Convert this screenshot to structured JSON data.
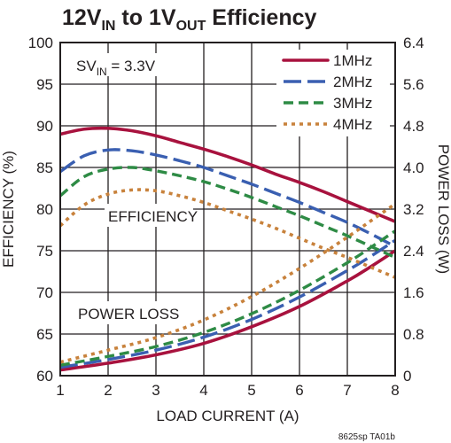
{
  "chart_data": {
    "type": "line",
    "title": {
      "parts": [
        {
          "text": "12V",
          "sub": false
        },
        {
          "text": "IN",
          "sub": true
        },
        {
          "text": " to 1V",
          "sub": false
        },
        {
          "text": "OUT",
          "sub": true
        },
        {
          "text": " Efficiency",
          "sub": false
        }
      ]
    },
    "xlabel": "LOAD CURRENT (A)",
    "ylabel_left": "EFFICIENCY (%)",
    "ylabel_right": "POWER LOSS (W)",
    "xlim": [
      1,
      8
    ],
    "ylim_left": [
      60,
      100
    ],
    "ylim_right": [
      0,
      6.4
    ],
    "x_ticks": [
      "1",
      "2",
      "3",
      "4",
      "5",
      "6",
      "7",
      "8"
    ],
    "y_left_ticks": [
      "60",
      "65",
      "70",
      "75",
      "80",
      "85",
      "90",
      "95",
      "100"
    ],
    "y_right_ticks": [
      "0",
      "0.8",
      "1.6",
      "2.4",
      "3.2",
      "4.0",
      "4.8",
      "5.6",
      "6.4"
    ],
    "grid": true,
    "annotations": {
      "svin": {
        "prefix": "SV",
        "sub": "IN",
        "suffix": " = 3.3V"
      },
      "efficiency_label": "EFFICIENCY",
      "power_loss_label": "POWER LOSS"
    },
    "legend_position": "top-right",
    "footnote": "8625sp TA01b",
    "series": [
      {
        "name": "1MHz",
        "color": "#a8123e",
        "dash": "solid",
        "efficiency": {
          "x": [
            1,
            1.5,
            2,
            2.5,
            3,
            3.5,
            4,
            4.5,
            5,
            5.5,
            6,
            6.5,
            7,
            7.5,
            8
          ],
          "y": [
            89.0,
            89.6,
            89.7,
            89.4,
            88.8,
            88.0,
            87.2,
            86.3,
            85.3,
            84.2,
            83.2,
            82.1,
            80.9,
            79.7,
            78.5
          ]
        },
        "power_loss": {
          "x": [
            1,
            2,
            3,
            4,
            5,
            6,
            7,
            7.5,
            8
          ],
          "y": [
            0.11,
            0.24,
            0.4,
            0.62,
            0.94,
            1.33,
            1.82,
            2.1,
            2.4
          ]
        }
      },
      {
        "name": "2MHz",
        "color": "#3a5fb1",
        "dash": "longdash",
        "efficiency": {
          "x": [
            1,
            1.5,
            2,
            2.5,
            3,
            3.5,
            4,
            4.5,
            5,
            5.5,
            6,
            6.5,
            7,
            7.5,
            8
          ],
          "y": [
            84.5,
            86.4,
            87.1,
            87.0,
            86.5,
            85.8,
            85.0,
            84.0,
            83.0,
            81.9,
            80.8,
            79.6,
            78.4,
            77.0,
            75.5
          ]
        },
        "power_loss": {
          "x": [
            1,
            2,
            3,
            4,
            5,
            6,
            7,
            7.5,
            8
          ],
          "y": [
            0.16,
            0.31,
            0.49,
            0.74,
            1.08,
            1.51,
            2.02,
            2.3,
            2.6
          ]
        }
      },
      {
        "name": "3MHz",
        "color": "#2e8b45",
        "dash": "dash",
        "efficiency": {
          "x": [
            1,
            1.5,
            2,
            2.5,
            3,
            3.5,
            4,
            4.5,
            5,
            5.5,
            6,
            6.5,
            7,
            7.5,
            8
          ],
          "y": [
            81.6,
            83.9,
            84.8,
            85.0,
            84.6,
            84.0,
            83.3,
            82.4,
            81.4,
            80.3,
            79.2,
            78.0,
            76.8,
            75.5,
            74.2
          ]
        },
        "power_loss": {
          "x": [
            1,
            2,
            3,
            4,
            5,
            6,
            7,
            7.5,
            8
          ],
          "y": [
            0.2,
            0.37,
            0.56,
            0.83,
            1.19,
            1.64,
            2.17,
            2.47,
            2.78
          ]
        }
      },
      {
        "name": "4MHz",
        "color": "#c8823c",
        "dash": "dot",
        "efficiency": {
          "x": [
            1,
            1.5,
            2,
            2.5,
            3,
            3.5,
            4,
            4.5,
            5,
            5.5,
            6,
            6.5,
            7,
            7.5,
            8
          ],
          "y": [
            78.0,
            80.5,
            81.8,
            82.3,
            82.2,
            81.6,
            80.8,
            79.8,
            78.8,
            77.7,
            76.5,
            75.3,
            74.2,
            73.0,
            71.8
          ]
        },
        "power_loss": {
          "x": [
            1,
            2,
            3,
            4,
            5,
            6,
            7,
            7.5,
            8
          ],
          "y": [
            0.26,
            0.49,
            0.73,
            1.07,
            1.52,
            2.06,
            2.66,
            2.98,
            3.3
          ]
        }
      }
    ]
  }
}
